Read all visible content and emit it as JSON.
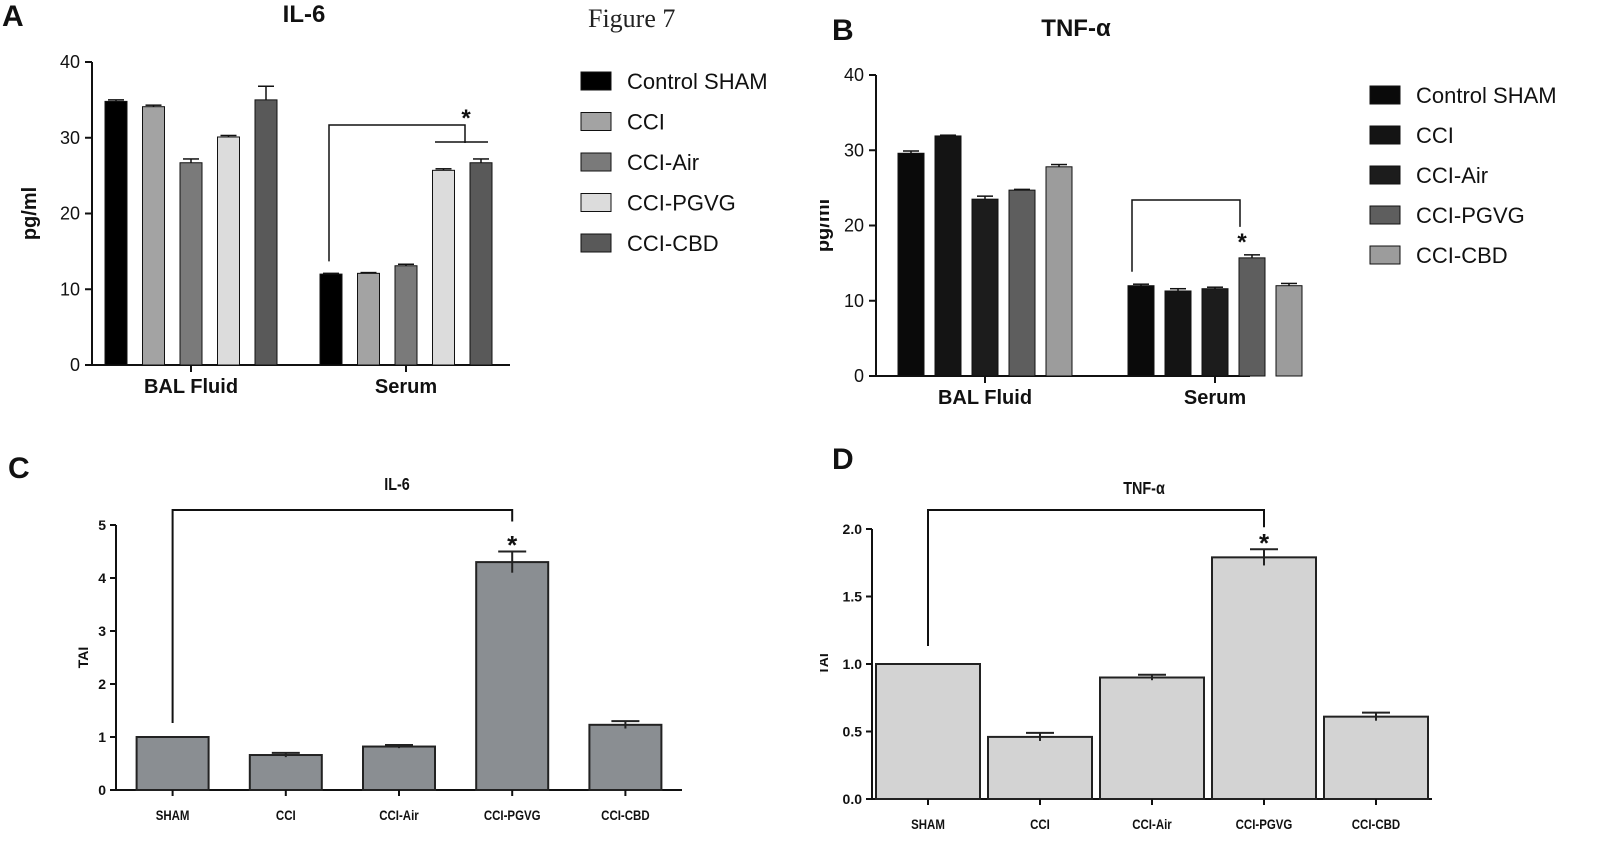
{
  "figure_title": "Figure 7",
  "panels": [
    {
      "letter": "A"
    },
    {
      "letter": "B"
    },
    {
      "letter": "C"
    },
    {
      "letter": "D"
    }
  ],
  "chart_data": [
    {
      "type": "bar",
      "title": "IL-6",
      "ylabel": "pg/ml",
      "xlabel": "",
      "ylim": [
        0,
        40
      ],
      "yticks": [
        "0",
        "10",
        "20",
        "30",
        "40"
      ],
      "categories": [
        "BAL Fluid",
        "Serum"
      ],
      "series": [
        {
          "name": "Control SHAM",
          "values": [
            34.8,
            12.0
          ],
          "errors": [
            0.2,
            0.1
          ],
          "color": "#000000"
        },
        {
          "name": "CCI",
          "values": [
            34.1,
            12.1
          ],
          "errors": [
            0.2,
            0.1
          ],
          "color": "#a3a3a3"
        },
        {
          "name": "CCI-Air",
          "values": [
            26.7,
            13.1
          ],
          "errors": [
            0.5,
            0.2
          ],
          "color": "#7a7a7a"
        },
        {
          "name": "CCI-PGVG",
          "values": [
            30.1,
            25.7
          ],
          "errors": [
            0.2,
            0.2
          ],
          "color": "#dcdcdc"
        },
        {
          "name": "CCI-CBD",
          "values": [
            35.0,
            26.7
          ],
          "errors": [
            1.8,
            0.5
          ],
          "color": "#595959"
        }
      ],
      "annotation": "*",
      "legend": "right"
    },
    {
      "type": "bar",
      "title": "TNF-α",
      "ylabel": "pg/ml",
      "xlabel": "",
      "ylim": [
        0,
        40
      ],
      "yticks": [
        "0",
        "10",
        "20",
        "30",
        "40"
      ],
      "categories": [
        "BAL Fluid",
        "Serum"
      ],
      "series": [
        {
          "name": "Control SHAM",
          "values": [
            29.6,
            12.0
          ],
          "errors": [
            0.3,
            0.2
          ],
          "color": "#0a0a0a"
        },
        {
          "name": "CCI",
          "values": [
            31.9,
            11.3
          ],
          "errors": [
            0.1,
            0.3
          ],
          "color": "#141414"
        },
        {
          "name": "CCI-Air",
          "values": [
            23.5,
            11.6
          ],
          "errors": [
            0.4,
            0.2
          ],
          "color": "#1c1c1c"
        },
        {
          "name": "CCI-PGVG",
          "values": [
            24.7,
            15.7
          ],
          "errors": [
            0.1,
            0.4
          ],
          "color": "#5e5e5e"
        },
        {
          "name": "CCI-CBD",
          "values": [
            27.8,
            12.0
          ],
          "errors": [
            0.3,
            0.3
          ],
          "color": "#9c9c9c"
        }
      ],
      "annotation": "*",
      "legend": "right"
    },
    {
      "type": "bar",
      "title": "IL-6",
      "ylabel": "TAI",
      "xlabel": "",
      "ylim": [
        0,
        5
      ],
      "yticks": [
        "0",
        "1",
        "2",
        "3",
        "4",
        "5"
      ],
      "categories": [
        "SHAM",
        "CCI",
        "CCI-Air",
        "CCI-PGVG",
        "CCI-CBD"
      ],
      "values": [
        1.0,
        0.66,
        0.82,
        4.3,
        1.23
      ],
      "errors": [
        0.0,
        0.04,
        0.03,
        0.2,
        0.07
      ],
      "color": "#8a8e92",
      "annotation": "*"
    },
    {
      "type": "bar",
      "title": "TNF-α",
      "ylabel": "TAI",
      "xlabel": "",
      "ylim": [
        0,
        2
      ],
      "yticks": [
        "0.0",
        "0.5",
        "1.0",
        "1.5",
        "2.0"
      ],
      "categories": [
        "SHAM",
        "CCI",
        "CCI-Air",
        "CCI-PGVG",
        "CCI-CBD"
      ],
      "values": [
        1.0,
        0.46,
        0.9,
        1.79,
        0.61
      ],
      "errors": [
        0.0,
        0.03,
        0.02,
        0.06,
        0.03
      ],
      "color": "#d3d3d3",
      "annotation": "*"
    }
  ]
}
